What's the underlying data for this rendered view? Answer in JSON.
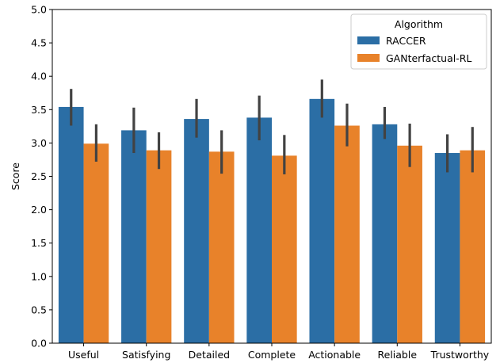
{
  "chart_data": {
    "type": "bar",
    "title": "",
    "xlabel": "",
    "ylabel": "Score",
    "ylim": [
      0,
      5
    ],
    "yticks": [
      "0.0",
      "0.5",
      "1.0",
      "1.5",
      "2.0",
      "2.5",
      "3.0",
      "3.5",
      "4.0",
      "4.5",
      "5.0"
    ],
    "categories": [
      "Useful",
      "Satisfying",
      "Detailed",
      "Complete",
      "Actionable",
      "Reliable",
      "Trustworthy"
    ],
    "legend": {
      "title": "Algorithm",
      "position": "top-right"
    },
    "grid": false,
    "series": [
      {
        "name": "RACCER",
        "color": "#2b6ea5",
        "values": [
          3.54,
          3.19,
          3.36,
          3.38,
          3.66,
          3.28,
          2.85
        ],
        "error_low": [
          3.26,
          2.85,
          3.08,
          3.04,
          3.38,
          3.06,
          2.56
        ],
        "error_high": [
          3.81,
          3.53,
          3.66,
          3.71,
          3.95,
          3.54,
          3.13
        ]
      },
      {
        "name": "GANterfactual-RL",
        "color": "#e8822a",
        "values": [
          2.99,
          2.89,
          2.87,
          2.81,
          3.26,
          2.96,
          2.89
        ],
        "error_low": [
          2.72,
          2.61,
          2.54,
          2.53,
          2.95,
          2.64,
          2.56
        ],
        "error_high": [
          3.28,
          3.16,
          3.19,
          3.12,
          3.59,
          3.29,
          3.24
        ]
      }
    ]
  }
}
